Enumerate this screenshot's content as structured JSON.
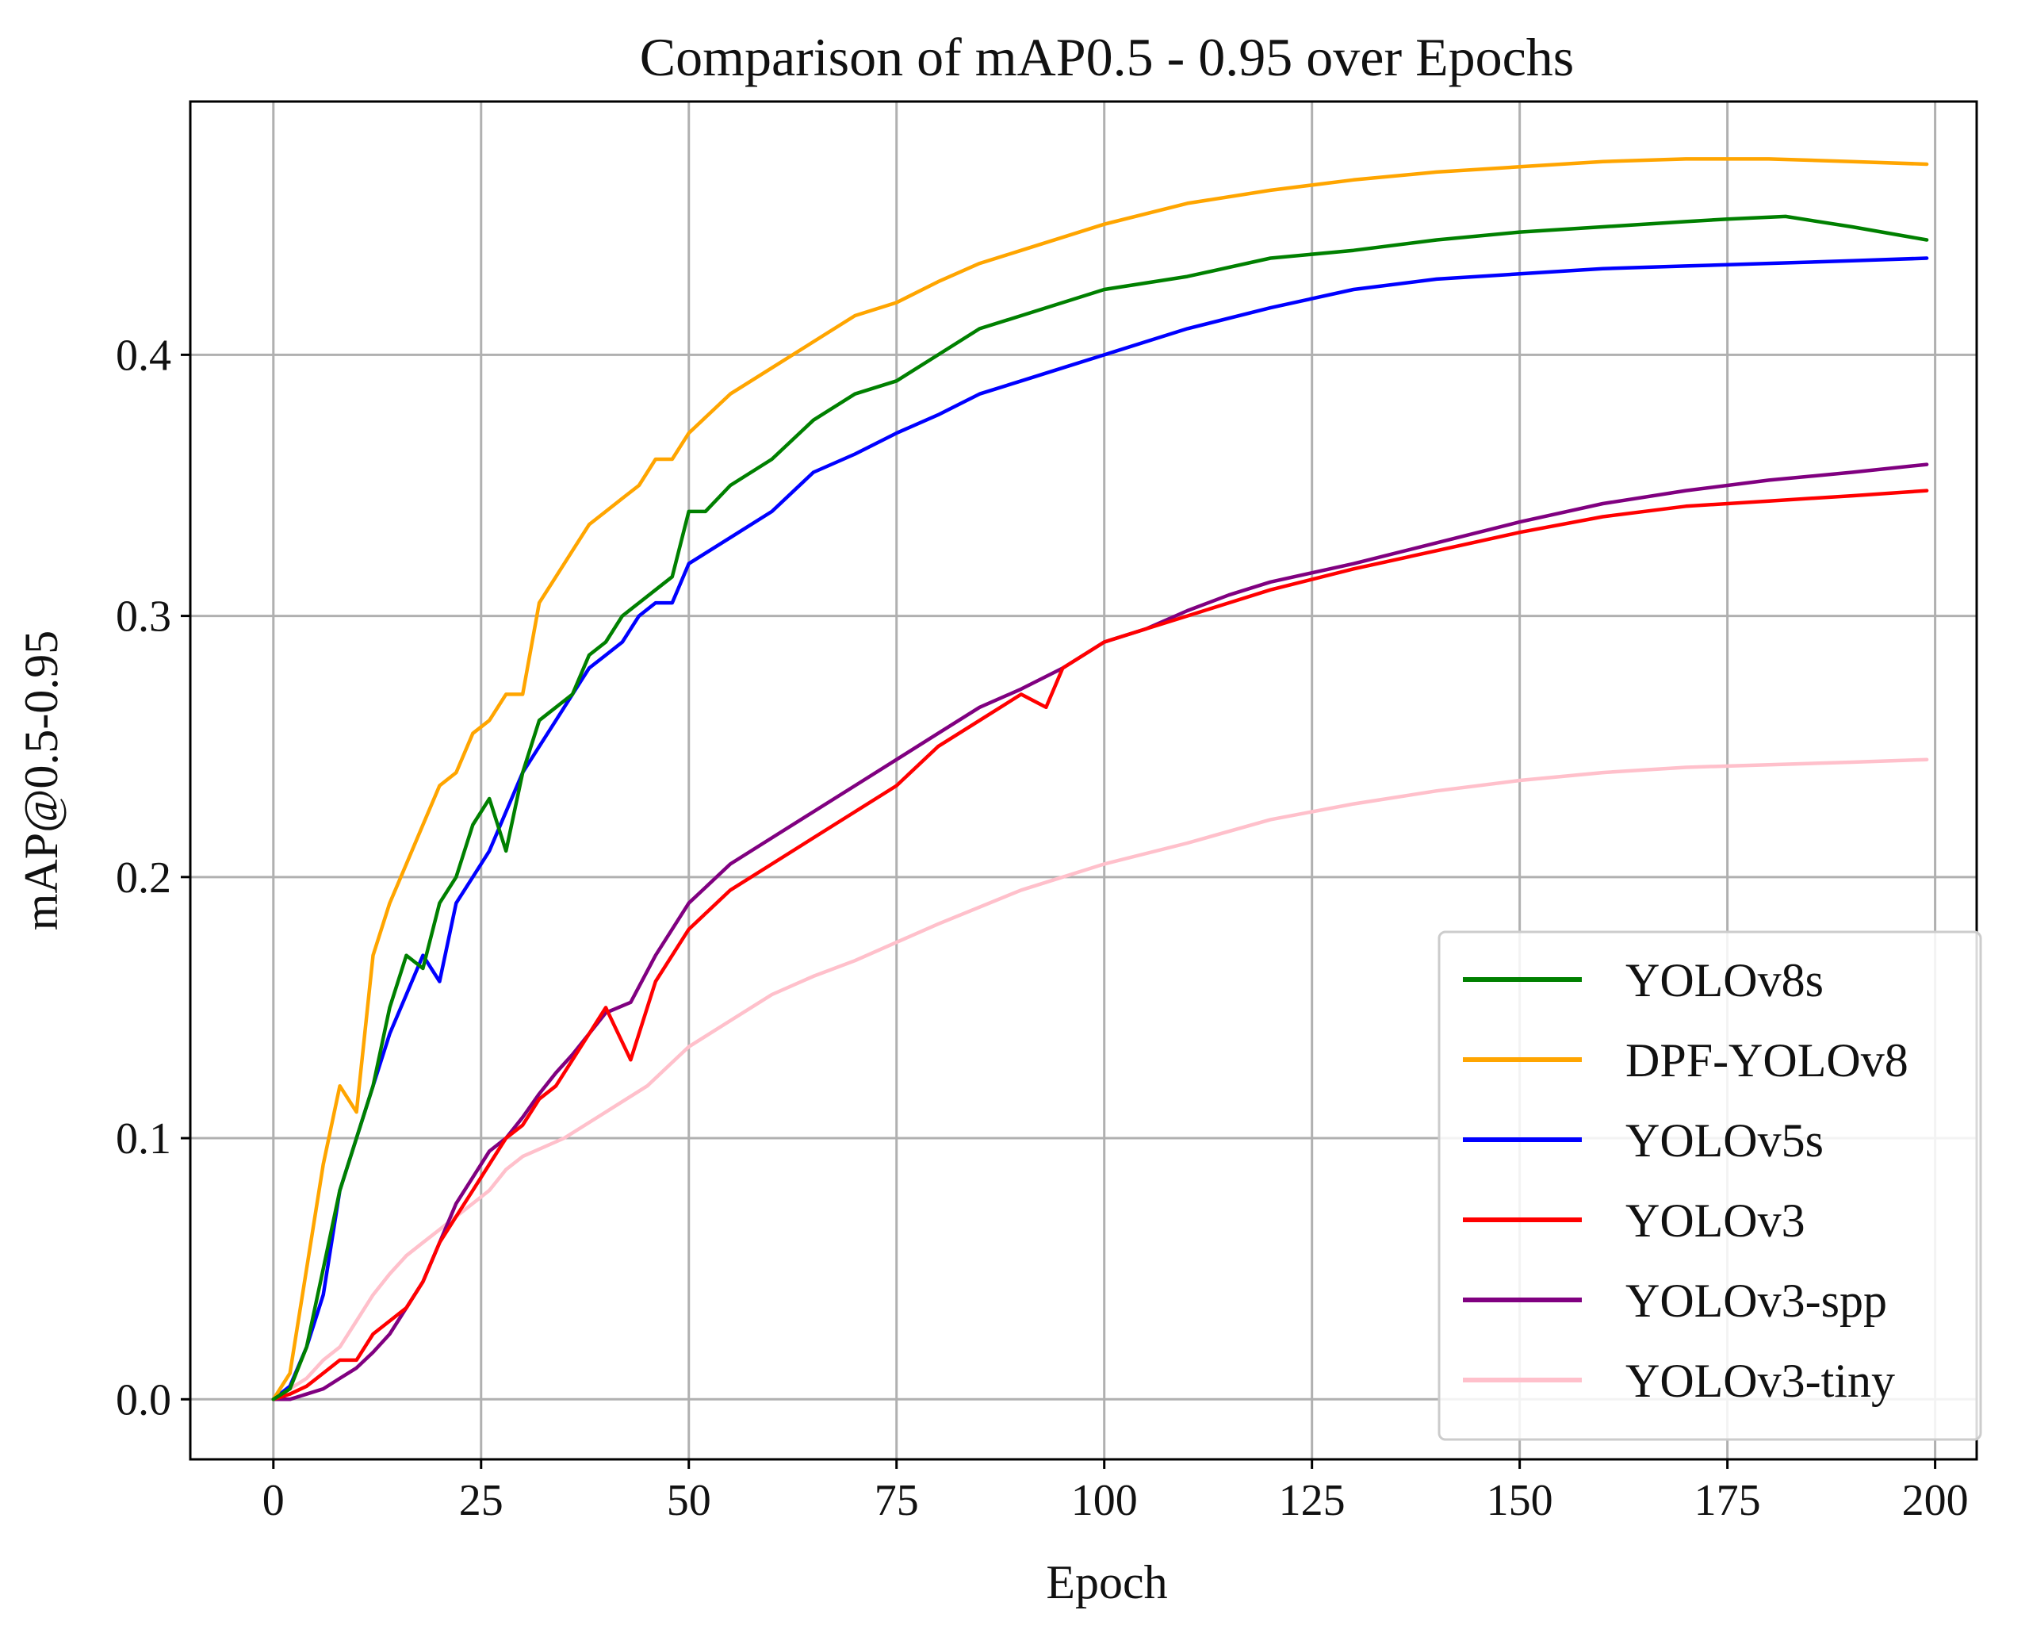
{
  "chart_data": {
    "type": "line",
    "title": "Comparison of mAP0.5 - 0.95 over Epochs",
    "xlabel": "Epoch",
    "ylabel": "mAP@0.5-0.95",
    "xlim": [
      -10,
      205
    ],
    "ylim": [
      -0.023,
      0.497
    ],
    "xticks": [
      0,
      25,
      50,
      75,
      100,
      125,
      150,
      175,
      200
    ],
    "xtick_labels": [
      "0",
      "25",
      "50",
      "75",
      "100",
      "125",
      "150",
      "175",
      "200"
    ],
    "yticks": [
      0.0,
      0.1,
      0.2,
      0.3,
      0.4
    ],
    "ytick_labels": [
      "0.0",
      "0.1",
      "0.2",
      "0.3",
      "0.4"
    ],
    "grid": true,
    "legend_position": "lower-right",
    "series": [
      {
        "name": "YOLOv8s",
        "color": "#008000",
        "x": [
          0,
          2,
          4,
          6,
          8,
          10,
          12,
          14,
          16,
          18,
          20,
          22,
          24,
          26,
          28,
          30,
          32,
          34,
          36,
          38,
          40,
          42,
          44,
          46,
          48,
          50,
          52,
          55,
          60,
          65,
          70,
          75,
          80,
          85,
          90,
          95,
          100,
          110,
          120,
          130,
          140,
          150,
          160,
          170,
          175,
          182,
          190,
          199
        ],
        "y": [
          0.0,
          0.004,
          0.02,
          0.05,
          0.08,
          0.1,
          0.12,
          0.15,
          0.17,
          0.165,
          0.19,
          0.2,
          0.22,
          0.23,
          0.21,
          0.24,
          0.26,
          0.265,
          0.27,
          0.285,
          0.29,
          0.3,
          0.305,
          0.31,
          0.315,
          0.34,
          0.34,
          0.35,
          0.36,
          0.375,
          0.385,
          0.39,
          0.4,
          0.41,
          0.415,
          0.42,
          0.425,
          0.43,
          0.437,
          0.44,
          0.444,
          0.447,
          0.449,
          0.451,
          0.452,
          0.453,
          0.449,
          0.444
        ]
      },
      {
        "name": "DPF-YOLOv8",
        "color": "#FFA500",
        "x": [
          0,
          2,
          4,
          6,
          8,
          10,
          12,
          14,
          16,
          18,
          20,
          22,
          24,
          26,
          28,
          30,
          32,
          34,
          36,
          38,
          40,
          42,
          44,
          46,
          48,
          50,
          55,
          60,
          65,
          70,
          75,
          80,
          85,
          90,
          95,
          100,
          110,
          120,
          130,
          140,
          150,
          160,
          170,
          180,
          190,
          199
        ],
        "y": [
          0.0,
          0.01,
          0.05,
          0.09,
          0.12,
          0.11,
          0.17,
          0.19,
          0.205,
          0.22,
          0.235,
          0.24,
          0.255,
          0.26,
          0.27,
          0.27,
          0.305,
          0.315,
          0.325,
          0.335,
          0.34,
          0.345,
          0.35,
          0.36,
          0.36,
          0.37,
          0.385,
          0.395,
          0.405,
          0.415,
          0.42,
          0.428,
          0.435,
          0.44,
          0.445,
          0.45,
          0.458,
          0.463,
          0.467,
          0.47,
          0.472,
          0.474,
          0.475,
          0.475,
          0.474,
          0.473
        ]
      },
      {
        "name": "YOLOv5s",
        "color": "#0000FF",
        "x": [
          0,
          2,
          4,
          6,
          8,
          10,
          12,
          14,
          16,
          18,
          20,
          22,
          24,
          26,
          28,
          30,
          32,
          34,
          36,
          38,
          40,
          42,
          44,
          46,
          48,
          50,
          55,
          60,
          65,
          70,
          75,
          80,
          85,
          90,
          95,
          100,
          110,
          120,
          130,
          140,
          150,
          160,
          170,
          180,
          190,
          199
        ],
        "y": [
          0.0,
          0.005,
          0.02,
          0.04,
          0.08,
          0.1,
          0.12,
          0.14,
          0.155,
          0.17,
          0.16,
          0.19,
          0.2,
          0.21,
          0.225,
          0.24,
          0.25,
          0.26,
          0.27,
          0.28,
          0.285,
          0.29,
          0.3,
          0.305,
          0.305,
          0.32,
          0.33,
          0.34,
          0.355,
          0.362,
          0.37,
          0.377,
          0.385,
          0.39,
          0.395,
          0.4,
          0.41,
          0.418,
          0.425,
          0.429,
          0.431,
          0.433,
          0.434,
          0.435,
          0.436,
          0.437
        ]
      },
      {
        "name": "YOLOv3",
        "color": "#FF0000",
        "x": [
          0,
          2,
          4,
          6,
          8,
          10,
          12,
          14,
          16,
          18,
          20,
          22,
          24,
          26,
          28,
          30,
          32,
          34,
          36,
          38,
          40,
          43,
          46,
          50,
          55,
          60,
          65,
          70,
          75,
          80,
          85,
          90,
          93,
          95,
          100,
          105,
          110,
          115,
          120,
          130,
          140,
          150,
          160,
          170,
          180,
          190,
          199
        ],
        "y": [
          0.0,
          0.002,
          0.005,
          0.01,
          0.015,
          0.015,
          0.025,
          0.03,
          0.035,
          0.045,
          0.06,
          0.07,
          0.08,
          0.09,
          0.1,
          0.105,
          0.115,
          0.12,
          0.13,
          0.14,
          0.15,
          0.13,
          0.16,
          0.18,
          0.195,
          0.205,
          0.215,
          0.225,
          0.235,
          0.25,
          0.26,
          0.27,
          0.265,
          0.28,
          0.29,
          0.295,
          0.3,
          0.305,
          0.31,
          0.318,
          0.325,
          0.332,
          0.338,
          0.342,
          0.344,
          0.346,
          0.348
        ]
      },
      {
        "name": "YOLOv3-spp",
        "color": "#800080",
        "x": [
          0,
          2,
          4,
          6,
          8,
          10,
          12,
          14,
          16,
          18,
          20,
          22,
          24,
          26,
          28,
          30,
          32,
          34,
          36,
          38,
          40,
          43,
          46,
          50,
          55,
          60,
          65,
          70,
          75,
          80,
          85,
          90,
          95,
          100,
          105,
          110,
          115,
          120,
          130,
          140,
          150,
          160,
          170,
          180,
          190,
          199
        ],
        "y": [
          0.0,
          0.0,
          0.002,
          0.004,
          0.008,
          0.012,
          0.018,
          0.025,
          0.035,
          0.045,
          0.06,
          0.075,
          0.085,
          0.095,
          0.1,
          0.108,
          0.117,
          0.125,
          0.132,
          0.14,
          0.148,
          0.152,
          0.17,
          0.19,
          0.205,
          0.215,
          0.225,
          0.235,
          0.245,
          0.255,
          0.265,
          0.272,
          0.28,
          0.29,
          0.295,
          0.302,
          0.308,
          0.313,
          0.32,
          0.328,
          0.336,
          0.343,
          0.348,
          0.352,
          0.355,
          0.358
        ]
      },
      {
        "name": "YOLOv3-tiny",
        "color": "#FFC0CB",
        "x": [
          0,
          2,
          4,
          6,
          8,
          10,
          12,
          14,
          16,
          18,
          20,
          22,
          24,
          26,
          28,
          30,
          35,
          40,
          45,
          50,
          55,
          60,
          65,
          70,
          75,
          80,
          90,
          100,
          110,
          120,
          130,
          140,
          150,
          160,
          170,
          180,
          190,
          199
        ],
        "y": [
          0.0,
          0.004,
          0.008,
          0.015,
          0.02,
          0.03,
          0.04,
          0.048,
          0.055,
          0.06,
          0.065,
          0.07,
          0.075,
          0.08,
          0.088,
          0.093,
          0.1,
          0.11,
          0.12,
          0.135,
          0.145,
          0.155,
          0.162,
          0.168,
          0.175,
          0.182,
          0.195,
          0.205,
          0.213,
          0.222,
          0.228,
          0.233,
          0.237,
          0.24,
          0.242,
          0.243,
          0.244,
          0.245
        ]
      }
    ]
  }
}
